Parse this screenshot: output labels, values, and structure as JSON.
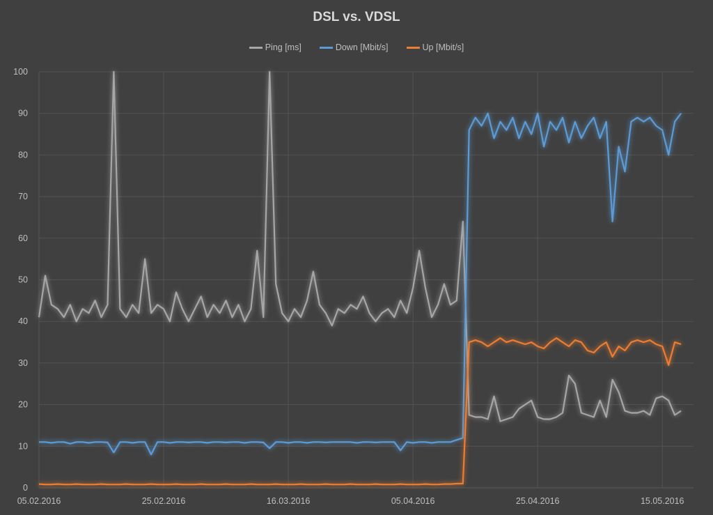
{
  "chart_data": {
    "type": "line",
    "title": "DSL vs. VDSL",
    "xlabel": "",
    "ylabel": "",
    "ylim": [
      0,
      100
    ],
    "yticks": [
      0,
      10,
      20,
      30,
      40,
      50,
      60,
      70,
      80,
      90,
      100
    ],
    "xticks": [
      "05.02.2016",
      "25.02.2016",
      "16.03.2016",
      "05.04.2016",
      "25.04.2016",
      "15.05.2016"
    ],
    "xlim": [
      "05.02.2016",
      "20.05.2016"
    ],
    "grid": true,
    "legend": "top",
    "x": [
      "05.02.2016",
      "06.02.2016",
      "07.02.2016",
      "08.02.2016",
      "09.02.2016",
      "10.02.2016",
      "11.02.2016",
      "12.02.2016",
      "13.02.2016",
      "14.02.2016",
      "15.02.2016",
      "16.02.2016",
      "17.02.2016",
      "18.02.2016",
      "19.02.2016",
      "20.02.2016",
      "21.02.2016",
      "22.02.2016",
      "23.02.2016",
      "24.02.2016",
      "25.02.2016",
      "26.02.2016",
      "27.02.2016",
      "28.02.2016",
      "29.02.2016",
      "01.03.2016",
      "02.03.2016",
      "03.03.2016",
      "04.03.2016",
      "05.03.2016",
      "06.03.2016",
      "07.03.2016",
      "08.03.2016",
      "09.03.2016",
      "10.03.2016",
      "11.03.2016",
      "12.03.2016",
      "13.03.2016",
      "14.03.2016",
      "15.03.2016",
      "16.03.2016",
      "17.03.2016",
      "18.03.2016",
      "19.03.2016",
      "20.03.2016",
      "21.03.2016",
      "22.03.2016",
      "23.03.2016",
      "24.03.2016",
      "25.03.2016",
      "26.03.2016",
      "27.03.2016",
      "28.03.2016",
      "29.03.2016",
      "30.03.2016",
      "31.03.2016",
      "01.04.2016",
      "02.04.2016",
      "03.04.2016",
      "04.04.2016",
      "05.04.2016",
      "06.04.2016",
      "07.04.2016",
      "08.04.2016",
      "09.04.2016",
      "10.04.2016",
      "11.04.2016",
      "12.04.2016",
      "13.04.2016",
      "14.04.2016",
      "15.04.2016",
      "16.04.2016",
      "17.04.2016",
      "18.04.2016",
      "19.04.2016",
      "20.04.2016",
      "21.04.2016",
      "22.04.2016",
      "23.04.2016",
      "24.04.2016",
      "25.04.2016",
      "26.04.2016",
      "27.04.2016",
      "28.04.2016",
      "29.04.2016",
      "30.04.2016",
      "01.05.2016",
      "02.05.2016",
      "03.05.2016",
      "04.05.2016",
      "05.05.2016",
      "06.05.2016",
      "07.05.2016",
      "08.05.2016",
      "09.05.2016",
      "10.05.2016",
      "11.05.2016",
      "12.05.2016",
      "13.05.2016",
      "14.05.2016",
      "15.05.2016",
      "16.05.2016",
      "17.05.2016",
      "18.05.2016"
    ],
    "series": [
      {
        "name": "Ping [ms]",
        "color": "#a6a6a6",
        "values": [
          41,
          51,
          44,
          43,
          41,
          44,
          40,
          43,
          42,
          45,
          41,
          44,
          100,
          43,
          41,
          44,
          42,
          55,
          42,
          44,
          43,
          40,
          47,
          43,
          40,
          43,
          46,
          41,
          44,
          42,
          45,
          41,
          44,
          40,
          43,
          57,
          41,
          100,
          49,
          42,
          40,
          43,
          41,
          45,
          52,
          44,
          42,
          39,
          43,
          42,
          44,
          43,
          46,
          42,
          40,
          42,
          43,
          41,
          45,
          42,
          48,
          57,
          48,
          41,
          44,
          49,
          44,
          45,
          64,
          17.5,
          17,
          17,
          16.5,
          22,
          16,
          16.5,
          17,
          19,
          20,
          21,
          17,
          16.5,
          16.5,
          17,
          18,
          27,
          25,
          18,
          17.5,
          17,
          21,
          17,
          26,
          23,
          18.5,
          18,
          18,
          18.5,
          17.5,
          21.5,
          22,
          21,
          17.5,
          18.5
        ]
      },
      {
        "name": "Down [Mbit/s]",
        "color": "#5b9bd5",
        "values": [
          11,
          11,
          10.8,
          11,
          11,
          10.6,
          11,
          11,
          10.8,
          11,
          11,
          10.9,
          8.5,
          11,
          11,
          10.8,
          11,
          11,
          8,
          11,
          11,
          10.8,
          11,
          11,
          10.9,
          11,
          11,
          10.8,
          11,
          11,
          10.9,
          11,
          11,
          10.8,
          11,
          11,
          10.9,
          9.5,
          11,
          11,
          10.8,
          11,
          11,
          10.8,
          11,
          11,
          10.9,
          11,
          11,
          11,
          11,
          10.8,
          11,
          11,
          10.9,
          11,
          11,
          11,
          9,
          11,
          10.8,
          11,
          11,
          10.8,
          11,
          11,
          11,
          11.5,
          12,
          86,
          89,
          87,
          90,
          84,
          88,
          86,
          89,
          84,
          88,
          85,
          90,
          82,
          88,
          86,
          89,
          83,
          88,
          84,
          87,
          89,
          84,
          88,
          64,
          82,
          76,
          88,
          89,
          88,
          89,
          87,
          86,
          80,
          88,
          90
        ]
      },
      {
        "name": "Up [Mbit/s]",
        "color": "#ed7d31",
        "values": [
          0.9,
          0.8,
          0.8,
          0.9,
          0.8,
          0.8,
          0.9,
          0.8,
          0.8,
          0.8,
          0.9,
          0.8,
          0.8,
          0.8,
          0.9,
          0.8,
          0.8,
          0.8,
          0.9,
          0.8,
          0.8,
          0.8,
          0.9,
          0.8,
          0.8,
          0.8,
          0.9,
          0.8,
          0.8,
          0.8,
          0.9,
          0.8,
          0.8,
          0.8,
          0.9,
          0.8,
          0.8,
          0.8,
          0.9,
          0.8,
          0.8,
          0.8,
          0.9,
          0.8,
          0.8,
          0.8,
          0.9,
          0.8,
          0.8,
          0.8,
          0.9,
          0.8,
          0.8,
          0.8,
          0.9,
          0.8,
          0.8,
          0.8,
          0.9,
          0.8,
          0.8,
          0.8,
          0.9,
          0.8,
          0.8,
          0.9,
          0.9,
          1,
          1,
          35,
          35.5,
          35,
          34,
          35,
          36,
          35,
          35.5,
          35,
          34.5,
          35,
          34,
          33.5,
          35,
          36,
          35,
          34,
          35.5,
          35,
          33,
          32.5,
          34,
          35,
          31.5,
          34,
          33,
          35,
          35.5,
          35,
          35.5,
          34.5,
          34,
          29.5,
          35,
          34.5
        ]
      }
    ]
  }
}
